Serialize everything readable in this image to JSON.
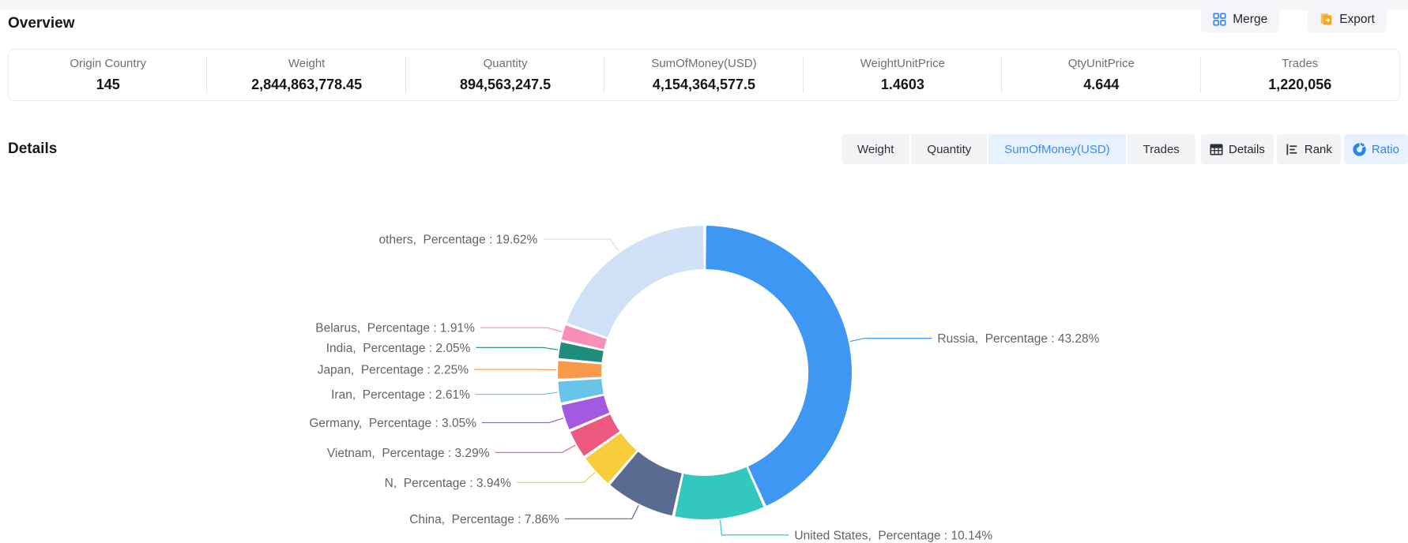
{
  "header": {
    "title": "Overview",
    "merge": "Merge",
    "export": "Export"
  },
  "stats": {
    "items": [
      {
        "label": "Origin Country",
        "value": "145"
      },
      {
        "label": "Weight",
        "value": "2,844,863,778.45"
      },
      {
        "label": "Quantity",
        "value": "894,563,247.5"
      },
      {
        "label": "SumOfMoney(USD)",
        "value": "4,154,364,577.5"
      },
      {
        "label": "WeightUnitPrice",
        "value": "1.4603"
      },
      {
        "label": "QtyUnitPrice",
        "value": "4.644"
      },
      {
        "label": "Trades",
        "value": "1,220,056"
      }
    ]
  },
  "details": {
    "title": "Details",
    "metric_tabs": [
      {
        "label": "Weight",
        "active": false
      },
      {
        "label": "Quantity",
        "active": false
      },
      {
        "label": "SumOfMoney(USD)",
        "active": true
      },
      {
        "label": "Trades",
        "active": false
      }
    ],
    "view_tabs": [
      {
        "label": "Details",
        "icon": "table-icon",
        "active": false
      },
      {
        "label": "Rank",
        "icon": "rank-icon",
        "active": false
      },
      {
        "label": "Ratio",
        "icon": "donut-icon",
        "active": true
      }
    ]
  },
  "colors": {
    "accent": "#3C8CF0",
    "tab_active_bg": "#E7F2FE",
    "tab_bg": "#F2F3F5",
    "chart_label_text": "#5F646B"
  },
  "chart_data": {
    "type": "pie",
    "subtype": "donut",
    "title": "",
    "label_metric": "Percentage",
    "unit": "%",
    "start_angle_deg": 0,
    "clockwise": true,
    "legend": "none",
    "slices": [
      {
        "name": "Russia",
        "value": 43.28,
        "color": "#3E97F2"
      },
      {
        "name": "United States",
        "value": 10.14,
        "color": "#33C8BD"
      },
      {
        "name": "China",
        "value": 7.86,
        "color": "#5A6B92"
      },
      {
        "name": "N",
        "value": 3.94,
        "color": "#F8CD3C"
      },
      {
        "name": "Vietnam",
        "value": 3.29,
        "color": "#EE587E"
      },
      {
        "name": "Germany",
        "value": 3.05,
        "color": "#A35AE0"
      },
      {
        "name": "Iran",
        "value": 2.61,
        "color": "#67C4E8"
      },
      {
        "name": "Japan",
        "value": 2.25,
        "color": "#F9994A"
      },
      {
        "name": "India",
        "value": 2.05,
        "color": "#1F8C7D"
      },
      {
        "name": "Belarus",
        "value": 1.91,
        "color": "#F78FB8"
      },
      {
        "name": "others",
        "value": 19.62,
        "color": "#CFE0F7"
      }
    ]
  }
}
